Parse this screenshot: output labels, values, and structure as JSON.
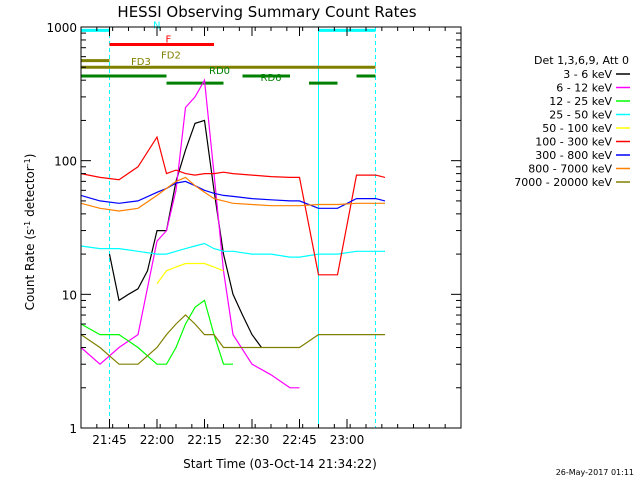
{
  "chart_data": {
    "type": "line",
    "title": "HESSI Observing Summary Count Rates",
    "xlabel": "Start Time (03-Oct-14 21:34:22)",
    "ylabel_main": "Count Rate (s",
    "ylabel_sup1": "-1",
    "ylabel_mid": " detector",
    "ylabel_sup2": "-1",
    "ylabel_end": ")",
    "yscale": "log",
    "ylim": [
      1,
      1000
    ],
    "xlim_minutes": [
      21.6,
      23.6
    ],
    "y_ticks": [
      {
        "value": 1,
        "label": "1"
      },
      {
        "value": 10,
        "label": "10"
      },
      {
        "value": 100,
        "label": "100"
      },
      {
        "value": 1000,
        "label": "1000"
      }
    ],
    "x_ticks": [
      {
        "value": 21.75,
        "label": "21:45"
      },
      {
        "value": 22.0,
        "label": "22:00"
      },
      {
        "value": 22.25,
        "label": "22:15"
      },
      {
        "value": 22.5,
        "label": "22:30"
      },
      {
        "value": 22.75,
        "label": "22:45"
      },
      {
        "value": 23.0,
        "label": "23:00"
      }
    ],
    "legend_title": "Det 1,3,6,9, Att 0",
    "legend_placement": "right",
    "series": [
      {
        "name": "3 - 6 keV",
        "color": "#000000",
        "x": [
          21.75,
          21.8,
          21.85,
          21.9,
          21.95,
          22.0,
          22.05,
          22.1,
          22.15,
          22.2,
          22.25,
          22.3,
          22.35,
          22.4,
          22.45,
          22.5,
          22.55
        ],
        "values": [
          20,
          9,
          10,
          11,
          15,
          30,
          30,
          70,
          120,
          190,
          200,
          60,
          20,
          10,
          7,
          5,
          4
        ]
      },
      {
        "name": "6 - 12 keV",
        "color": "#ff00ff",
        "x": [
          21.6,
          21.7,
          21.8,
          21.9,
          22.0,
          22.05,
          22.1,
          22.15,
          22.2,
          22.25,
          22.3,
          22.35,
          22.4,
          22.5,
          22.6,
          22.7,
          22.75
        ],
        "values": [
          4,
          3,
          4,
          5,
          25,
          30,
          60,
          250,
          300,
          400,
          80,
          15,
          5,
          3,
          2.5,
          2,
          2
        ]
      },
      {
        "name": "12 - 25 keV",
        "color": "#00ff00",
        "x": [
          21.6,
          21.7,
          21.8,
          21.9,
          22.0,
          22.05,
          22.1,
          22.15,
          22.2,
          22.25,
          22.3,
          22.35,
          22.4
        ],
        "values": [
          6,
          5,
          5,
          4,
          3,
          3,
          4,
          6,
          8,
          9,
          5,
          3,
          3
        ]
      },
      {
        "name": "25 - 50 keV",
        "color": "#00ffff",
        "x": [
          21.6,
          21.7,
          21.8,
          21.9,
          22.0,
          22.05,
          22.1,
          22.15,
          22.2,
          22.25,
          22.3,
          22.35,
          22.4,
          22.5,
          22.6,
          22.7,
          22.75,
          22.85,
          22.95,
          23.05,
          23.15,
          23.2
        ],
        "values": [
          23,
          22,
          22,
          21,
          20,
          20,
          21,
          22,
          23,
          24,
          22,
          21,
          21,
          20,
          20,
          19,
          19,
          20,
          20,
          21,
          21,
          21
        ]
      },
      {
        "name": "50 - 100 keV",
        "color": "#ffff00",
        "x": [
          22.0,
          22.05,
          22.1,
          22.15,
          22.2,
          22.25,
          22.3,
          22.35
        ],
        "values": [
          12,
          15,
          16,
          17,
          17,
          17,
          16,
          15
        ]
      },
      {
        "name": "100 - 300 keV",
        "color": "#ff0000",
        "x": [
          21.6,
          21.7,
          21.8,
          21.9,
          22.0,
          22.05,
          22.1,
          22.15,
          22.2,
          22.25,
          22.3,
          22.35,
          22.4,
          22.5,
          22.6,
          22.7,
          22.75,
          22.85,
          22.95,
          23.05,
          23.15,
          23.2
        ],
        "values": [
          80,
          75,
          72,
          90,
          150,
          80,
          85,
          80,
          78,
          80,
          80,
          82,
          80,
          78,
          76,
          75,
          75,
          14,
          14,
          78,
          78,
          75
        ]
      },
      {
        "name": "300 - 800 keV",
        "color": "#0000ff",
        "x": [
          21.6,
          21.7,
          21.8,
          21.9,
          22.0,
          22.05,
          22.1,
          22.15,
          22.2,
          22.25,
          22.3,
          22.35,
          22.4,
          22.5,
          22.6,
          22.7,
          22.75,
          22.85,
          22.95,
          23.05,
          23.15,
          23.2
        ],
        "values": [
          55,
          50,
          48,
          50,
          58,
          62,
          68,
          70,
          65,
          60,
          57,
          55,
          54,
          52,
          51,
          50,
          50,
          44,
          44,
          52,
          52,
          50
        ]
      },
      {
        "name": "800 - 7000 keV",
        "color": "#ff8000",
        "x": [
          21.6,
          21.7,
          21.8,
          21.9,
          22.0,
          22.05,
          22.1,
          22.15,
          22.2,
          22.25,
          22.3,
          22.35,
          22.4,
          22.5,
          22.6,
          22.7,
          22.75,
          22.85,
          22.95,
          23.05,
          23.15,
          23.2
        ],
        "values": [
          48,
          44,
          42,
          44,
          55,
          62,
          70,
          75,
          65,
          58,
          52,
          50,
          48,
          47,
          46,
          46,
          46,
          47,
          47,
          48,
          48,
          48
        ]
      },
      {
        "name": "7000 - 20000 keV",
        "color": "#808000",
        "x": [
          21.6,
          21.7,
          21.8,
          21.9,
          22.0,
          22.05,
          22.1,
          22.15,
          22.2,
          22.25,
          22.3,
          22.35,
          22.4,
          22.5,
          22.6,
          22.7,
          22.75,
          22.85,
          22.95,
          23.05,
          23.15,
          23.2
        ],
        "values": [
          5,
          4,
          3,
          3,
          4,
          5,
          6,
          7,
          6,
          5,
          5,
          4,
          4,
          4,
          4,
          4,
          4,
          5,
          5,
          5,
          5,
          5
        ]
      }
    ],
    "flag_bars": [
      {
        "label": "N",
        "color": "#00ffff",
        "y": 944,
        "segments": [
          [
            21.6,
            21.75
          ],
          [
            22.85,
            23.15
          ]
        ]
      },
      {
        "label": "F",
        "color": "#ff0000",
        "y": 740,
        "segments": [
          [
            21.75,
            22.3
          ]
        ]
      },
      {
        "label": "FD2",
        "color": "#808000",
        "y": 560,
        "segments": [
          [
            21.6,
            21.75
          ]
        ]
      },
      {
        "label": "FD3",
        "color": "#808000",
        "y": 500,
        "segments": [
          [
            21.6,
            23.15
          ]
        ]
      },
      {
        "label": "RD0",
        "color": "#008000",
        "y": 430,
        "segments": [
          [
            21.6,
            22.05
          ],
          [
            22.45,
            22.7
          ],
          [
            23.05,
            23.15
          ]
        ]
      },
      {
        "label": "RD6",
        "color": "#008000",
        "y": 380,
        "segments": [
          [
            22.05,
            22.35
          ],
          [
            22.8,
            22.95
          ]
        ]
      }
    ],
    "vertical_markers": [
      {
        "x": 21.6,
        "color": "#00ffff"
      },
      {
        "x": 21.75,
        "color": "#00ffff"
      },
      {
        "x": 22.85,
        "color": "#00ffff"
      },
      {
        "x": 23.15,
        "color": "#00ffff"
      }
    ]
  },
  "timestamp": "26-May-2017 01:11"
}
